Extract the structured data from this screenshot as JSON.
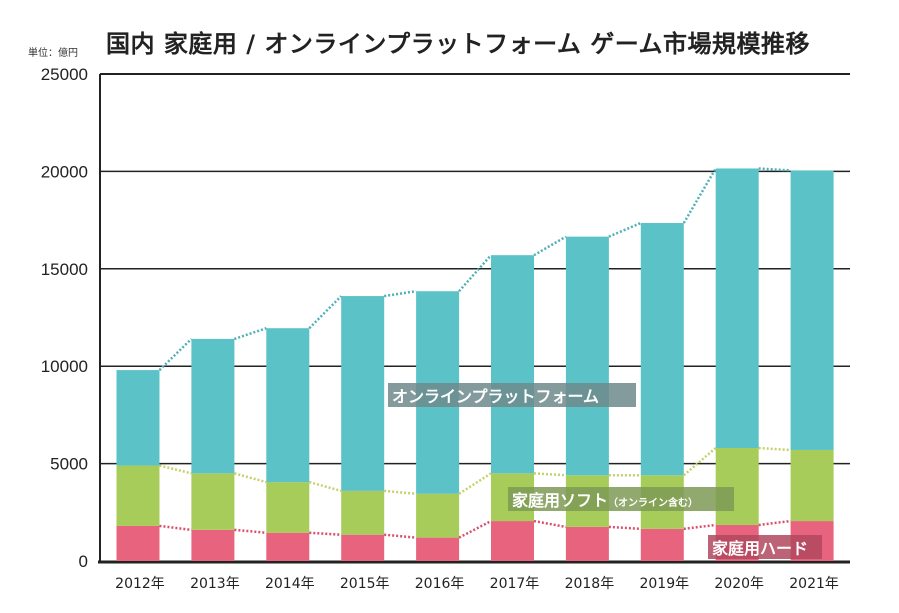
{
  "chart_data": {
    "type": "bar",
    "stacked": true,
    "title": "国内 家庭用 / オンラインプラットフォーム ゲーム市場規模推移",
    "unit_label": "単位：億円",
    "categories": [
      "2012年",
      "2013年",
      "2014年",
      "2015年",
      "2016年",
      "2017年",
      "2018年",
      "2019年",
      "2020年",
      "2021年"
    ],
    "ylim": [
      0,
      25000
    ],
    "yticks": [
      "0",
      "5000",
      "10000",
      "15000",
      "20000",
      "25000"
    ],
    "grid": true,
    "series": [
      {
        "name": "家庭用ハード",
        "color": "#e8637e",
        "values": [
          1800,
          1600,
          1450,
          1350,
          1200,
          2050,
          1750,
          1650,
          1850,
          2050
        ]
      },
      {
        "name": "家庭用ソフト",
        "name_note": "（オンライン含む）",
        "color": "#a8cc5a",
        "values": [
          3100,
          2900,
          2600,
          2250,
          2250,
          2450,
          2650,
          2750,
          3950,
          3650
        ]
      },
      {
        "name": "オンラインプラットフォーム",
        "color": "#5bc2c7",
        "values": [
          4900,
          6900,
          7900,
          10000,
          10400,
          11200,
          12250,
          12950,
          14350,
          14350
        ]
      }
    ]
  }
}
